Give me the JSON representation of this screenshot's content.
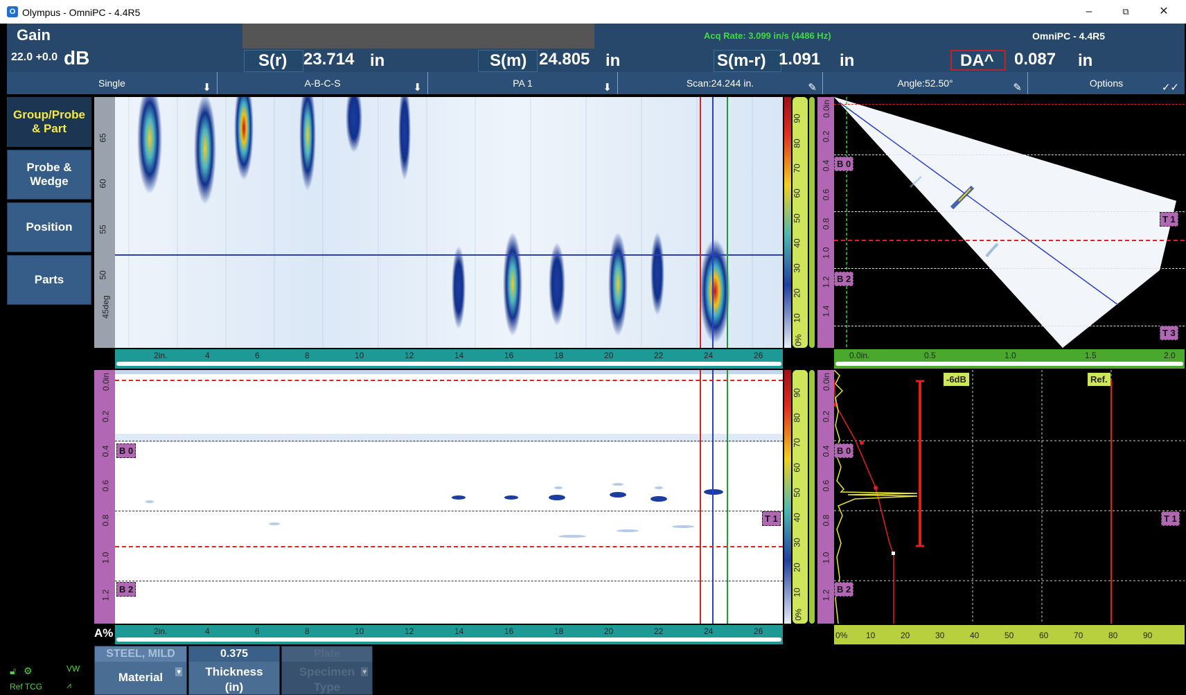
{
  "window": {
    "title": "Olympus - OmniPC - 4.4R5",
    "controls": {
      "minimize": "–",
      "restore": "⧉",
      "close": "✕"
    }
  },
  "header": {
    "gain_label": "Gain",
    "gain_value": "22.0 +0.0",
    "gain_unit": "dB",
    "acq_rate": "Acq Rate: 3.099 in/s (4486 Hz)",
    "product": "OmniPC - 4.4R5"
  },
  "readings": [
    {
      "label": "S(r)",
      "value": "23.714",
      "unit": "in"
    },
    {
      "label": "S(m)",
      "value": "24.805",
      "unit": "in"
    },
    {
      "label": "S(m-r)",
      "value": "1.091",
      "unit": "in"
    },
    {
      "label": "DA^",
      "value": "0.087",
      "unit": "in"
    }
  ],
  "toolbar": {
    "single": "Single",
    "layout": "A-B-C-S",
    "pa": "PA 1",
    "scan": "Scan:24.244 in.",
    "angle": "Angle:52.50°",
    "options": "Options"
  },
  "sidebar": [
    {
      "label": "Group/Probe & Part",
      "active": true
    },
    {
      "label": "Probe & Wedge",
      "active": false
    },
    {
      "label": "Position",
      "active": false
    },
    {
      "label": "Parts",
      "active": false
    }
  ],
  "cscan": {
    "y_ticks": [
      "65",
      "60",
      "55",
      "50",
      "45deg"
    ],
    "x_ticks": [
      "2in.",
      "4",
      "6",
      "8",
      "10",
      "12",
      "14",
      "16",
      "18",
      "20",
      "22",
      "24",
      "26"
    ],
    "amp_ticks": [
      "90",
      "80",
      "70",
      "60",
      "50",
      "40",
      "30",
      "20",
      "10",
      "0%"
    ]
  },
  "sscan": {
    "depth_ticks": [
      "0.0in",
      "0.2",
      "0.4",
      "0.6",
      "0.8",
      "1.0",
      "1.2",
      "1.4"
    ],
    "x_ticks": [
      "0.0in.",
      "0.5",
      "1.0",
      "1.5",
      "2.0"
    ],
    "gates": {
      "b0": "B 0",
      "b2": "B 2",
      "t1": "T 1",
      "t3": "T 3"
    }
  },
  "bscan": {
    "depth_ticks": [
      "0.0in",
      "0.2",
      "0.4",
      "0.6",
      "0.8",
      "1.0",
      "1.2"
    ],
    "x_ticks": [
      "2in.",
      "4",
      "6",
      "8",
      "10",
      "12",
      "14",
      "16",
      "18",
      "20",
      "22",
      "24",
      "26"
    ],
    "axis_label": "A%",
    "gates": {
      "b0": "B 0",
      "b2": "B 2",
      "t1": "T 1"
    }
  },
  "ascan": {
    "labels": {
      "db6": "-6dB",
      "ref": "Ref."
    },
    "amp_ticks": [
      "0%",
      "10",
      "20",
      "30",
      "40",
      "50",
      "60",
      "70",
      "80",
      "90"
    ],
    "gates": {
      "b0": "B 0",
      "b2": "B 2",
      "t1": "T 1"
    }
  },
  "bottom": [
    {
      "top": "STEEL, MILD",
      "bottom": "Material",
      "enabled": true
    },
    {
      "top": "0.375",
      "bottom": "Thickness (in)",
      "enabled": true
    },
    {
      "top": "Plate",
      "bottom": "Specimen Type",
      "enabled": false
    }
  ],
  "status": {
    "ref_tcg": "Ref TCG"
  }
}
